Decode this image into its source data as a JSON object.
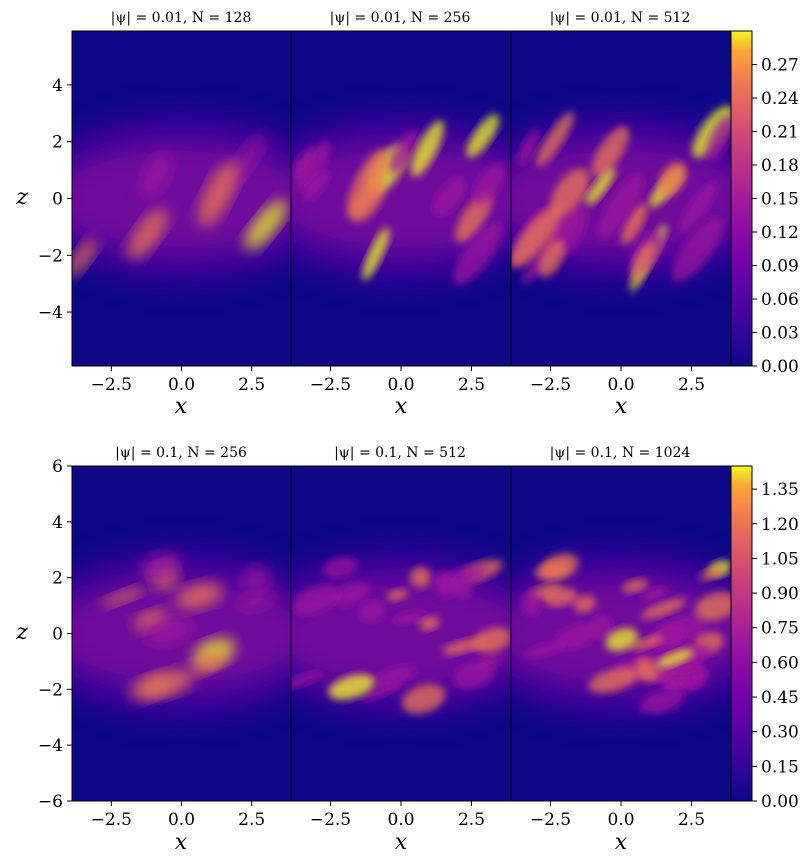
{
  "chart_data": [
    {
      "type": "heatmap",
      "row": "top",
      "panels": [
        {
          "title": "|ψ| = 0.01, N = 128"
        },
        {
          "title": "|ψ| = 0.01, N = 256"
        },
        {
          "title": "|ψ| = 0.01, N = 512"
        }
      ],
      "xlabel": "x",
      "ylabel": "z",
      "xlim": [
        -3.9,
        3.9
      ],
      "ylim": [
        -5.9,
        5.9
      ],
      "xticks": [
        "−2.5",
        "0.0",
        "2.5"
      ],
      "xtick_values": [
        -2.5,
        0.0,
        2.5
      ],
      "yticks": [
        "4",
        "2",
        "0",
        "−2",
        "−4"
      ],
      "ytick_values": [
        4,
        2,
        0,
        -2,
        -4
      ],
      "colormap": "plasma",
      "colorbar": {
        "range": [
          0.0,
          0.3
        ],
        "ticks": [
          "0.00",
          "0.03",
          "0.06",
          "0.09",
          "0.12",
          "0.15",
          "0.18",
          "0.21",
          "0.24",
          "0.27"
        ],
        "tick_values": [
          0.0,
          0.03,
          0.06,
          0.09,
          0.12,
          0.15,
          0.18,
          0.21,
          0.24,
          0.27
        ]
      }
    },
    {
      "type": "heatmap",
      "row": "bottom",
      "panels": [
        {
          "title": "|ψ| = 0.1, N = 256"
        },
        {
          "title": "|ψ| = 0.1, N = 512"
        },
        {
          "title": "|ψ| = 0.1, N = 1024"
        }
      ],
      "xlabel": "x",
      "ylabel": "z",
      "xlim": [
        -3.9,
        3.9
      ],
      "ylim": [
        -6,
        6
      ],
      "xticks": [
        "−2.5",
        "0.0",
        "2.5"
      ],
      "xtick_values": [
        -2.5,
        0.0,
        2.5
      ],
      "yticks": [
        "6",
        "4",
        "2",
        "0",
        "−2",
        "−4",
        "−6"
      ],
      "ytick_values": [
        6,
        4,
        2,
        0,
        -2,
        -4,
        -6
      ],
      "colormap": "plasma",
      "colorbar": {
        "range": [
          0.0,
          1.45
        ],
        "ticks": [
          "0.00",
          "0.15",
          "0.30",
          "0.45",
          "0.60",
          "0.75",
          "0.90",
          "1.05",
          "1.20",
          "1.35"
        ],
        "tick_values": [
          0.0,
          0.15,
          0.3,
          0.45,
          0.6,
          0.75,
          0.9,
          1.05,
          1.2,
          1.35
        ]
      }
    }
  ],
  "colors": {
    "background": "#0d0887",
    "low": "#3a049a",
    "mid": "#9c179e",
    "high": "#ed7953",
    "peak": "#f0f921"
  }
}
